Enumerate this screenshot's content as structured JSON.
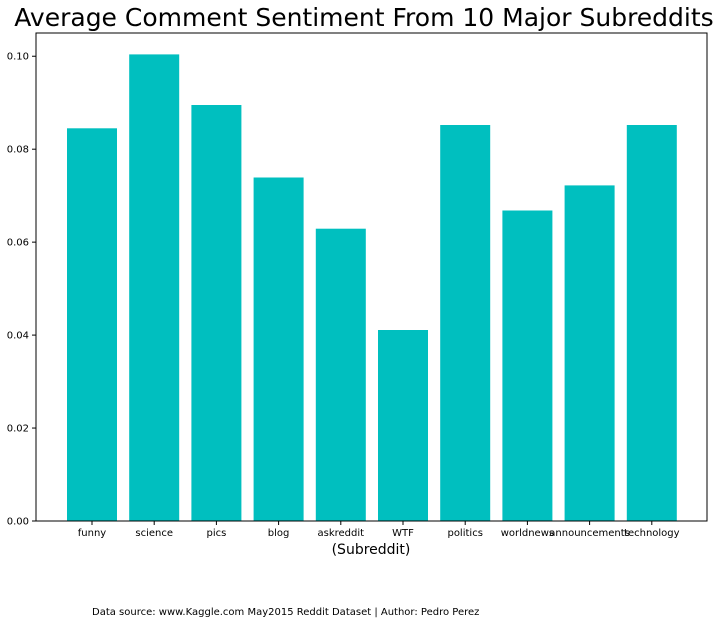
{
  "chart_data": {
    "type": "bar",
    "title": "Average Comment Sentiment From 10 Major Subreddits",
    "xlabel": "(Subreddit)",
    "ylabel": "",
    "categories": [
      "funny",
      "science",
      "pics",
      "blog",
      "askreddit",
      "WTF",
      "politics",
      "worldnews",
      "announcements",
      "technology"
    ],
    "values": [
      0.0845,
      0.1004,
      0.0895,
      0.0739,
      0.0629,
      0.0411,
      0.0852,
      0.0668,
      0.0722,
      0.0852
    ],
    "ylim": [
      0,
      0.105
    ],
    "yticks": [
      "0.00",
      "0.02",
      "0.04",
      "0.06",
      "0.08",
      "0.10"
    ],
    "bar_color": "#00bfbf",
    "grid": false,
    "legend": "none"
  },
  "footer": {
    "source_text": "Data source: www.Kaggle.com May2015 Reddit Dataset | Author: Pedro Perez"
  }
}
